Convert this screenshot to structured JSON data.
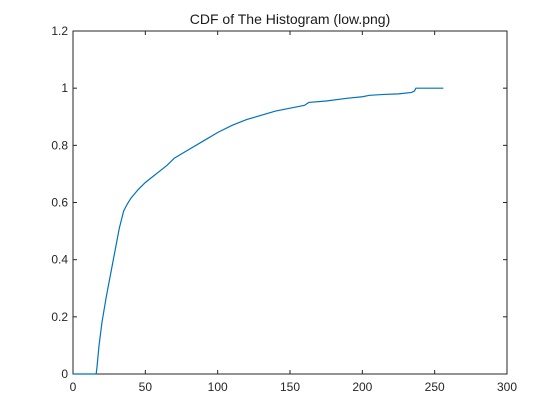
{
  "chart_data": {
    "type": "line",
    "title": "CDF of The Histogram (low.png)",
    "xlabel": "",
    "ylabel": "",
    "xlim": [
      0,
      300
    ],
    "ylim": [
      0,
      1.2
    ],
    "x_ticks": [
      0,
      50,
      100,
      150,
      200,
      250,
      300
    ],
    "y_ticks": [
      0,
      0.2,
      0.4,
      0.6,
      0.8,
      1,
      1.2
    ],
    "x_tick_labels": [
      "0",
      "50",
      "100",
      "150",
      "200",
      "250",
      "300"
    ],
    "y_tick_labels": [
      "0",
      "0.2",
      "0.4",
      "0.6",
      "0.8",
      "1",
      "1.2"
    ],
    "grid": false,
    "line_color": "#0072bd",
    "series": [
      {
        "x": [
          0,
          16,
          16.5,
          18,
          20,
          23,
          26,
          29,
          32,
          35,
          37,
          40,
          45,
          50,
          55,
          60,
          65,
          70,
          75,
          80,
          90,
          100,
          110,
          120,
          130,
          140,
          150,
          160,
          163,
          175,
          190,
          200,
          205,
          215,
          225,
          234,
          236,
          237,
          245,
          256
        ],
        "y": [
          0,
          0,
          0.02,
          0.1,
          0.18,
          0.27,
          0.35,
          0.43,
          0.51,
          0.57,
          0.59,
          0.615,
          0.645,
          0.67,
          0.69,
          0.71,
          0.73,
          0.755,
          0.77,
          0.785,
          0.815,
          0.845,
          0.87,
          0.89,
          0.905,
          0.92,
          0.93,
          0.94,
          0.95,
          0.955,
          0.965,
          0.97,
          0.975,
          0.978,
          0.98,
          0.985,
          0.99,
          1.0,
          1.0,
          1.0
        ]
      }
    ]
  }
}
